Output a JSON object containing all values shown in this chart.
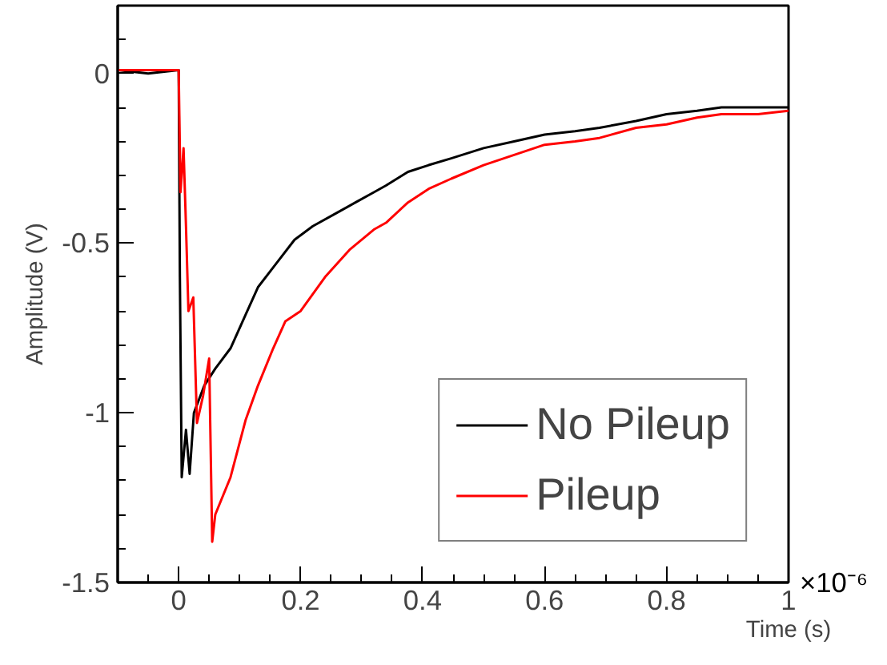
{
  "chart_data": {
    "type": "line",
    "xlabel": "Time (s)",
    "ylabel": "Amplitude (V)",
    "annotations": [
      "×10⁻⁶"
    ],
    "xlim": [
      -0.1,
      1
    ],
    "ylim": [
      -1.5,
      0.2
    ],
    "xticks": [
      0,
      0.2,
      0.4,
      0.6,
      0.8,
      1
    ],
    "yticks": [
      {
        "value": -1.5,
        "label": "-1.5"
      },
      {
        "value": -1,
        "label": "-1"
      },
      {
        "value": -0.5,
        "label": "-0.5"
      },
      {
        "value": 0,
        "label": "0"
      }
    ],
    "grid": false,
    "legend": "bottom right",
    "line_style": "solid",
    "marker": "none",
    "series": [
      {
        "name": "No Pileup",
        "color": "#000000",
        "x": [
          -0.1,
          -0.05,
          0,
          0.002,
          0.005,
          0.012,
          0.018,
          0.025,
          0.042,
          0.06,
          0.085,
          0.11,
          0.13,
          0.16,
          0.19,
          0.22,
          0.26,
          0.29,
          0.32,
          0.34,
          0.376,
          0.41,
          0.447,
          0.5,
          0.55,
          0.6,
          0.65,
          0.69,
          0.75,
          0.8,
          0.85,
          0.89,
          0.95,
          1.0
        ],
        "values": [
          0.01,
          0.0,
          0.01,
          -0.6,
          -1.19,
          -1.05,
          -1.18,
          -1.0,
          -0.92,
          -0.87,
          -0.81,
          -0.71,
          -0.63,
          -0.56,
          -0.49,
          -0.45,
          -0.41,
          -0.38,
          -0.35,
          -0.33,
          -0.29,
          -0.27,
          -0.25,
          -0.22,
          -0.2,
          -0.18,
          -0.17,
          -0.16,
          -0.14,
          -0.12,
          -0.11,
          -0.1,
          -0.1,
          -0.1
        ]
      },
      {
        "name": "Pileup",
        "color": "#ff0000",
        "x": [
          -0.1,
          -0.05,
          0,
          0.003,
          0.008,
          0.012,
          0.016,
          0.024,
          0.03,
          0.04,
          0.05,
          0.055,
          0.06,
          0.085,
          0.11,
          0.13,
          0.155,
          0.175,
          0.2,
          0.24,
          0.28,
          0.32,
          0.34,
          0.376,
          0.41,
          0.447,
          0.5,
          0.55,
          0.6,
          0.65,
          0.69,
          0.75,
          0.8,
          0.85,
          0.89,
          0.95,
          1.0
        ],
        "values": [
          0.01,
          0.01,
          0.01,
          -0.35,
          -0.22,
          -0.45,
          -0.7,
          -0.66,
          -1.03,
          -0.95,
          -0.84,
          -1.38,
          -1.3,
          -1.19,
          -1.02,
          -0.92,
          -0.81,
          -0.73,
          -0.7,
          -0.6,
          -0.52,
          -0.46,
          -0.44,
          -0.38,
          -0.34,
          -0.31,
          -0.27,
          -0.24,
          -0.21,
          -0.2,
          -0.19,
          -0.16,
          -0.15,
          -0.13,
          -0.12,
          -0.12,
          -0.11
        ]
      }
    ]
  }
}
